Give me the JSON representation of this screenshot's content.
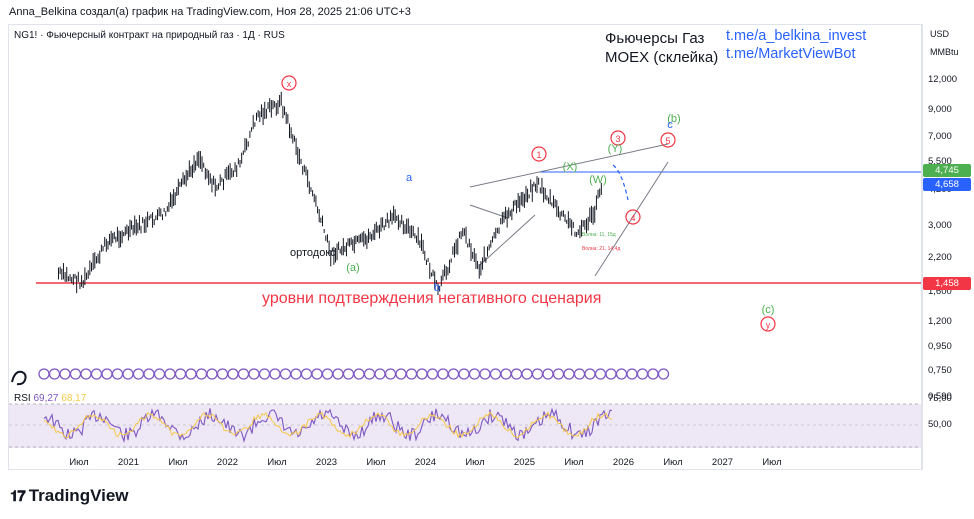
{
  "header": "Anna_Belkina создал(а) график на TradingView.com, Ноя 28, 2025 21:06 UTC+3",
  "symbol_line": "NG1! · Фьючерсный контракт на природный газ · 1Д · RUS",
  "title_lines": [
    "Фьючерсы Газ",
    "MOEX (склейка)"
  ],
  "links": [
    "t.me/a_belkina_invest",
    "t.me/MarketViewBot"
  ],
  "currency": "USD",
  "unit": "MMBtu",
  "price_tags": [
    {
      "label": "4,745",
      "color": "#4caf50"
    },
    {
      "label": "4,658",
      "color": "#2962ff"
    },
    {
      "label": "1,458",
      "color": "#f23645"
    }
  ],
  "negative_text": "уровни подтверждения негативного сценария",
  "ortho_label": "ортодокс",
  "rsi_label": {
    "name": "RSI",
    "v1": "69,27",
    "v2": "68,17"
  },
  "rsi_axis": [
    "75,00",
    "50,00"
  ],
  "small_note_1": "Волна: 11, 15д",
  "small_note_2": "Волна: 21, 14,4д",
  "logo": "TradingView",
  "chart_data": {
    "type": "candlestick",
    "title": "",
    "y_scale": "log",
    "y_ticks": [
      "12,000",
      "9,000",
      "7,000",
      "5,500",
      "4,200",
      "3,000",
      "2,200",
      "1,600",
      "1,200",
      "0,950",
      "0,750",
      "0,590"
    ],
    "x_ticks": [
      "Июл",
      "2021",
      "Июл",
      "2022",
      "Июл",
      "2023",
      "Июл",
      "2024",
      "Июл",
      "2025",
      "Июл",
      "2026",
      "Июл",
      "2027",
      "Июл"
    ],
    "horizontal_levels": [
      {
        "value": 1.458,
        "color": "#f23645"
      },
      {
        "value": 4.745,
        "color": "#2962ff"
      }
    ],
    "approx_path": [
      {
        "date": "2020-05",
        "price": 1.9
      },
      {
        "date": "2020-08",
        "price": 1.75
      },
      {
        "date": "2020-11",
        "price": 2.6
      },
      {
        "date": "2021-03",
        "price": 3.0
      },
      {
        "date": "2021-06",
        "price": 3.4
      },
      {
        "date": "2021-10",
        "price": 5.8
      },
      {
        "date": "2021-12",
        "price": 4.3
      },
      {
        "date": "2022-03",
        "price": 5.4
      },
      {
        "date": "2022-05",
        "price": 8.5
      },
      {
        "date": "2022-08",
        "price": 9.7
      },
      {
        "date": "2022-10",
        "price": 6.0
      },
      {
        "date": "2022-12",
        "price": 3.9
      },
      {
        "date": "2023-02",
        "price": 2.3
      },
      {
        "date": "2023-06",
        "price": 2.6
      },
      {
        "date": "2023-10",
        "price": 3.3
      },
      {
        "date": "2024-01",
        "price": 2.5
      },
      {
        "date": "2024-03",
        "price": 1.6
      },
      {
        "date": "2024-06",
        "price": 2.9
      },
      {
        "date": "2024-08",
        "price": 2.0
      },
      {
        "date": "2024-11",
        "price": 3.2
      },
      {
        "date": "2025-03",
        "price": 4.5
      },
      {
        "date": "2025-06",
        "price": 3.3
      },
      {
        "date": "2025-08",
        "price": 2.8
      },
      {
        "date": "2025-10",
        "price": 3.4
      },
      {
        "date": "2025-11",
        "price": 4.7
      }
    ]
  },
  "wave_labels": [
    {
      "text": "x",
      "color": "#f23645",
      "circled": true
    },
    {
      "text": "a",
      "color": "#2962ff"
    },
    {
      "text": "b",
      "color": "#2962ff"
    },
    {
      "text": "(a)",
      "color": "#4caf50"
    },
    {
      "text": "(b)",
      "color": "#4caf50"
    },
    {
      "text": "c",
      "color": "#2962ff"
    },
    {
      "text": "(c)",
      "color": "#4caf50"
    },
    {
      "text": "y",
      "color": "#f23645",
      "circled": true
    },
    {
      "text": "1",
      "color": "#f23645",
      "circled": true
    },
    {
      "text": "3",
      "color": "#f23645",
      "circled": true
    },
    {
      "text": "4",
      "color": "#f23645",
      "circled": true
    },
    {
      "text": "5",
      "color": "#f23645",
      "circled": true
    },
    {
      "text": "(Y)",
      "color": "#4caf50"
    },
    {
      "text": "(X)",
      "color": "#4caf50"
    },
    {
      "text": "(W)",
      "color": "#4caf50"
    }
  ]
}
